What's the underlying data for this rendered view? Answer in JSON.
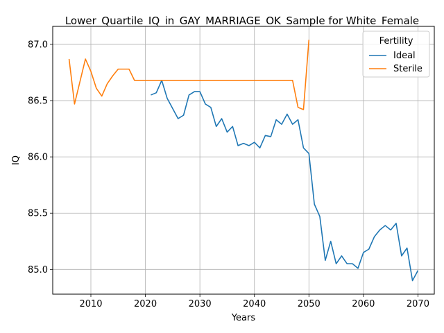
{
  "chart_data": {
    "type": "line",
    "title": "Lower_Quartile_IQ_in_GAY_MARRIAGE_OK_Sample for White_Female",
    "xlabel": "Years",
    "ylabel": "IQ",
    "xlim": [
      2003,
      2073
    ],
    "ylim": [
      84.78,
      87.16
    ],
    "xticks": [
      2010,
      2020,
      2030,
      2040,
      2050,
      2060,
      2070
    ],
    "yticks": [
      85.0,
      85.5,
      86.0,
      86.5,
      87.0
    ],
    "xtick_labels": [
      "2010",
      "2020",
      "2030",
      "2040",
      "2050",
      "2060",
      "2070"
    ],
    "ytick_labels": [
      "85.0",
      "85.5",
      "86.0",
      "86.5",
      "87.0"
    ],
    "grid": true,
    "legend": {
      "title": "Fertility",
      "position": "top-right"
    },
    "series": [
      {
        "name": "Ideal",
        "color": "#1f77b4",
        "x": [
          2021,
          2022,
          2023,
          2024,
          2025,
          2026,
          2027,
          2028,
          2029,
          2030,
          2031,
          2032,
          2033,
          2034,
          2035,
          2036,
          2037,
          2038,
          2039,
          2040,
          2041,
          2042,
          2043,
          2044,
          2045,
          2046,
          2047,
          2048,
          2049,
          2050,
          2051,
          2052,
          2053,
          2054,
          2055,
          2056,
          2057,
          2058,
          2059,
          2060,
          2061,
          2062,
          2063,
          2064,
          2065,
          2066,
          2067,
          2068,
          2069,
          2070
        ],
        "values": [
          86.55,
          86.57,
          86.68,
          86.52,
          86.43,
          86.34,
          86.37,
          86.55,
          86.58,
          86.58,
          86.47,
          86.44,
          86.27,
          86.34,
          86.22,
          86.27,
          86.1,
          86.12,
          86.1,
          86.13,
          86.08,
          86.19,
          86.18,
          86.33,
          86.29,
          86.38,
          86.29,
          86.33,
          86.08,
          86.03,
          85.58,
          85.47,
          85.08,
          85.25,
          85.05,
          85.12,
          85.05,
          85.05,
          85.01,
          85.15,
          85.18,
          85.29,
          85.35,
          85.39,
          85.35,
          85.41,
          85.12,
          85.19,
          84.9,
          84.99
        ]
      },
      {
        "name": "Sterile",
        "color": "#ff7f0e",
        "x": [
          2006,
          2007,
          2008,
          2009,
          2010,
          2011,
          2012,
          2013,
          2014,
          2015,
          2016,
          2017,
          2018,
          2019,
          2020,
          2021,
          2022,
          2023,
          2024,
          2025,
          2026,
          2027,
          2028,
          2029,
          2030,
          2031,
          2032,
          2033,
          2034,
          2035,
          2036,
          2037,
          2038,
          2039,
          2040,
          2041,
          2042,
          2043,
          2044,
          2045,
          2046,
          2047,
          2048,
          2049,
          2050
        ],
        "values": [
          86.87,
          86.47,
          86.67,
          86.87,
          86.76,
          86.61,
          86.54,
          86.65,
          86.72,
          86.78,
          86.78,
          86.78,
          86.68,
          86.68,
          86.68,
          86.68,
          86.68,
          86.68,
          86.68,
          86.68,
          86.68,
          86.68,
          86.68,
          86.68,
          86.68,
          86.68,
          86.68,
          86.68,
          86.68,
          86.68,
          86.68,
          86.68,
          86.68,
          86.68,
          86.68,
          86.68,
          86.68,
          86.68,
          86.68,
          86.68,
          86.68,
          86.68,
          86.44,
          86.42,
          87.04
        ]
      }
    ]
  }
}
